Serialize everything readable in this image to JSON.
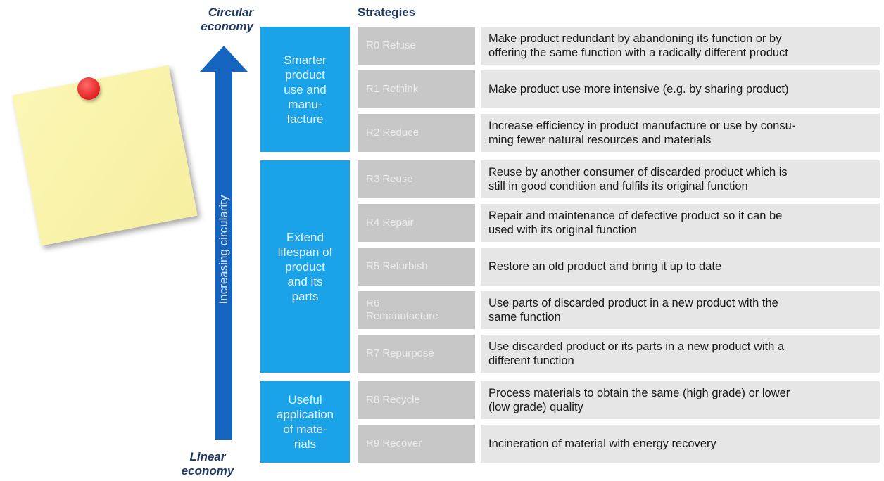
{
  "header": {
    "circular": "Circular\neconomy",
    "linear": "Linear\neconomy",
    "strategies": "Strategies",
    "arrow": "Increasing circularity"
  },
  "groups": [
    {
      "label": "Smarter\nproduct\nuse and\nmanu-\nfacture",
      "rows": [
        {
          "strategy": "R0 Refuse",
          "description": "Make product redundant by abandoning its function or by\noffering the same function with a radically different product"
        },
        {
          "strategy": "R1 Rethink",
          "description": "Make product use more intensive (e.g. by sharing product)"
        },
        {
          "strategy": "R2 Reduce",
          "description": "Increase efficiency in product manufacture or use by consu-\nming fewer natural resources and materials"
        }
      ]
    },
    {
      "label": "Extend\nlifespan of\nproduct\nand its\nparts",
      "rows": [
        {
          "strategy": "R3 Reuse",
          "description": "Reuse by another consumer of discarded product which is\nstill in good condition and fulfils its original function"
        },
        {
          "strategy": "R4 Repair",
          "description": "Repair and maintenance of defective product so it can be\nused with its original function"
        },
        {
          "strategy": "R5 Refurbish",
          "description": "Restore an old product and bring it up to date"
        },
        {
          "strategy": "R6\nRemanufacture",
          "description": "Use parts of discarded product in a new product with the\nsame function"
        },
        {
          "strategy": "R7 Repurpose",
          "description": "Use discarded product or its parts in a new product with a\ndifferent function"
        }
      ]
    },
    {
      "label": "Useful\napplication\nof mate-\nrials",
      "rows": [
        {
          "strategy": "R8 Recycle",
          "description": "Process materials to obtain the same (high grade) or lower\n(low grade) quality"
        },
        {
          "strategy": "R9 Recover",
          "description": "Incineration of material with energy recovery"
        }
      ]
    }
  ]
}
